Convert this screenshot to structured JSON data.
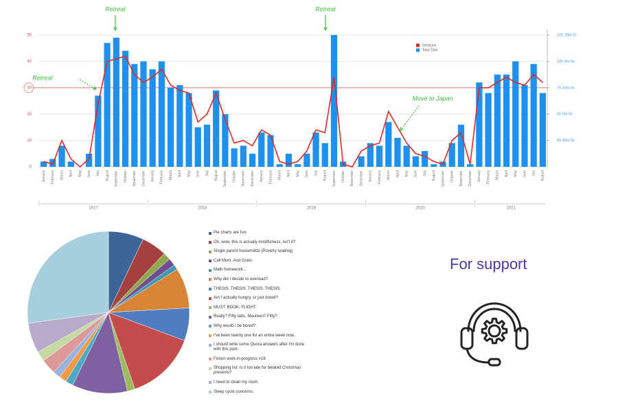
{
  "chart_data": [
    {
      "type": "bar",
      "annotations": [
        "Retreat",
        "Retreat",
        "Retreat",
        "Move to Japan"
      ],
      "years": [
        {
          "label": "2017",
          "months": [
            "January",
            "February",
            "March",
            "April",
            "May",
            "June",
            "July",
            "August",
            "September",
            "October",
            "November",
            "December"
          ]
        },
        {
          "label": "2018",
          "months": [
            "January",
            "February",
            "March",
            "April",
            "May",
            "June",
            "July",
            "August",
            "September",
            "October",
            "November",
            "December"
          ]
        },
        {
          "label": "2019",
          "months": [
            "January",
            "February",
            "March",
            "April",
            "May",
            "June",
            "July",
            "August",
            "September",
            "October",
            "November",
            "December"
          ]
        },
        {
          "label": "2020",
          "months": [
            "January",
            "February",
            "March",
            "April",
            "May",
            "June",
            "July",
            "August",
            "September",
            "October",
            "November",
            "December"
          ]
        },
        {
          "label": "2021",
          "months": [
            "January",
            "February",
            "March",
            "April",
            "May",
            "June",
            "July",
            "August"
          ]
        }
      ],
      "series": [
        {
          "name": "Total Time",
          "type": "bar",
          "axis": "y2",
          "color": "#1e90f0",
          "values": [
            0.5,
            0.75,
            2,
            0.5,
            0,
            1.25,
            6.75,
            11.75,
            12.25,
            11,
            9.75,
            10,
            9.25,
            10,
            7.5,
            7.75,
            7,
            3.75,
            4,
            7.25,
            5,
            1.75,
            2,
            1.25,
            3.25,
            3,
            0.25,
            1.25,
            0.25,
            1.25,
            3.25,
            2.25,
            12.5,
            0.5,
            0,
            1,
            2.25,
            2,
            4.25,
            2.75,
            2,
            1,
            1.5,
            0.25,
            0.5,
            2.25,
            4,
            0.25,
            8,
            7,
            8.75,
            8.75,
            10,
            7.75,
            9.75,
            7
          ]
        },
        {
          "name": "Sessions",
          "type": "line",
          "axis": "y",
          "color": "#e02828",
          "values": [
            2,
            1,
            10,
            3,
            0,
            3,
            24,
            40,
            41,
            42,
            35,
            32,
            34,
            37,
            31,
            29,
            28,
            17,
            20,
            28,
            18,
            9,
            10,
            8,
            14,
            12,
            2,
            1,
            2,
            6,
            14,
            13,
            34,
            1,
            0,
            6,
            8,
            9,
            21,
            15,
            9,
            5,
            4,
            2,
            1,
            10,
            13,
            1,
            30,
            30,
            32,
            34,
            32,
            31,
            35,
            32
          ]
        }
      ],
      "ylim": [
        0,
        50
      ],
      "yticks": [
        0,
        10,
        20,
        30,
        40,
        50
      ],
      "y2lim": [
        0,
        12.5
      ],
      "y2ticks": [
        {
          "value": 2.5,
          "label": "2h 30m 0s"
        },
        {
          "value": 5,
          "label": "5h 0m 0s"
        },
        {
          "value": 7.5,
          "label": "7h 30m 0s"
        },
        {
          "value": 10,
          "label": "10h 0m 0s"
        },
        {
          "value": 12.5,
          "label": "12h 30m 0s"
        }
      ],
      "reference_line": {
        "value": 30,
        "color": "#f3a0a0"
      },
      "grid": true,
      "legend": "top-right"
    },
    {
      "type": "pie",
      "categories": [
        "Pie charts are fun.",
        "Oh, wow, this is actually mindfulness, isn't it?",
        "Single parent households (Poverty reading)",
        "Call Mom. And Gram.",
        "Math homework...",
        "Why did I decide to overload?",
        "THESIS. THESIS. THESIS. THESIS.",
        "Am I actually hungry, or just bored?",
        "MUST. BOOK. FLIGHT.",
        "Really? Fifty tabs, Maureen? Fifty?",
        "Why would I be bored?",
        "I've been twenty one for an entire week now.",
        "I should write some Quora answers after I'm done with this post.",
        "Fiction work-in-progress #18",
        "Shopping list: Is it too late for belated Christmas presents?",
        "I need to clean my room.",
        "Sleep cycle concerns."
      ],
      "values": [
        7,
        5,
        1.5,
        1.5,
        1,
        8,
        6.5,
        14,
        1.5,
        11,
        1.5,
        1.5,
        1.5,
        3,
        2,
        6,
        27
      ],
      "colors": [
        "#3e6597",
        "#a54040",
        "#8fa84a",
        "#6f4f90",
        "#3d99b0",
        "#d88437",
        "#4f7dc0",
        "#c44c4c",
        "#9cbb5a",
        "#7d61a0",
        "#4babc6",
        "#f39a44",
        "#98b3de",
        "#dc9998",
        "#c5d9a1",
        "#b8aacb",
        "#a6cedd"
      ],
      "legend": "right"
    }
  ],
  "support": {
    "text": "For support"
  }
}
